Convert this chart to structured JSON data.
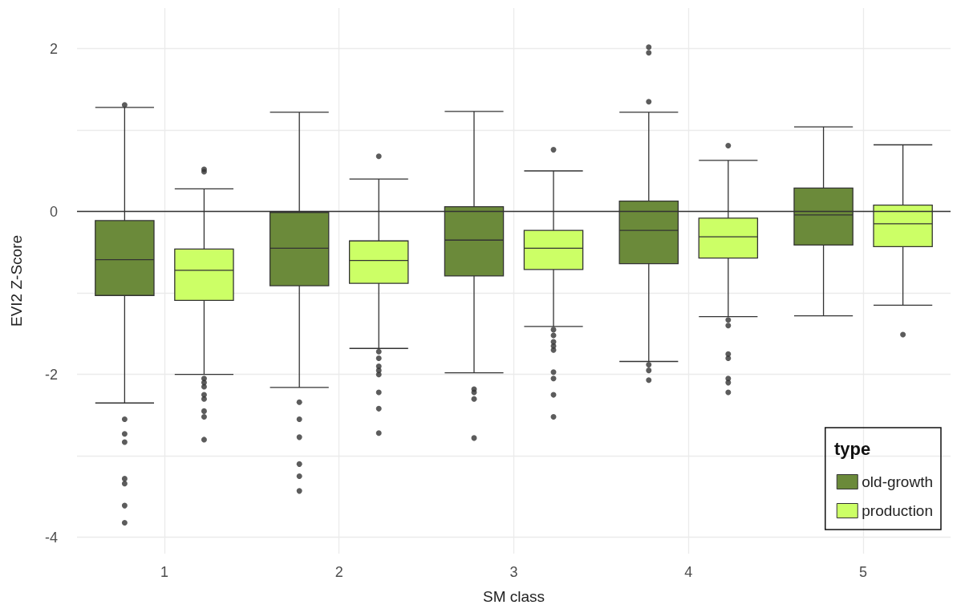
{
  "chart_data": {
    "type": "box",
    "xlabel": "SM class",
    "ylabel": "EVI2 Z-Score",
    "legend_title": "type",
    "categories": [
      "1",
      "2",
      "3",
      "4",
      "5"
    ],
    "ylim": [
      -4.2,
      2.5
    ],
    "yticks": [
      -4,
      {
        "value": -3,
        "label": null
      },
      -2,
      {
        "value": -1,
        "label": null
      },
      0,
      {
        "value": 1,
        "label": null
      },
      2
    ],
    "grid": true,
    "legend": "bottom right",
    "ref_lines": [
      {
        "axis": "y",
        "value": 0,
        "color": "#333333"
      }
    ],
    "series": [
      {
        "name": "old-growth",
        "color": "#6b8a3a",
        "boxes": [
          {
            "low": -2.35,
            "q1": -1.03,
            "median": -0.59,
            "q3": -0.11,
            "high": 1.28,
            "outliers": [
              1.31,
              -2.55,
              -2.73,
              -2.83,
              -3.28,
              -3.34,
              -3.61,
              -3.82
            ]
          },
          {
            "low": -2.16,
            "q1": -0.91,
            "median": -0.45,
            "q3": -0.01,
            "high": 1.22,
            "outliers": [
              -2.34,
              -2.55,
              -2.77,
              -3.1,
              -3.25,
              -3.43
            ]
          },
          {
            "low": -1.98,
            "q1": -0.79,
            "median": -0.35,
            "q3": 0.06,
            "high": 1.23,
            "outliers": [
              -2.18,
              -2.22,
              -2.3,
              -2.78
            ]
          },
          {
            "low": -1.84,
            "q1": -0.64,
            "median": -0.23,
            "q3": 0.13,
            "high": 1.22,
            "outliers": [
              2.02,
              1.95,
              1.35,
              -1.88,
              -1.95,
              -2.07
            ]
          },
          {
            "low": -1.28,
            "q1": -0.41,
            "median": -0.04,
            "q3": 0.29,
            "high": 1.04
          }
        ]
      },
      {
        "name": "production",
        "color": "#ccff66",
        "boxes": [
          {
            "low": -2.0,
            "q1": -1.09,
            "median": -0.72,
            "q3": -0.46,
            "high": 0.28,
            "outliers": [
              0.49,
              0.52,
              -2.05,
              -2.1,
              -2.15,
              -2.25,
              -2.3,
              -2.45,
              -2.52,
              -2.8
            ]
          },
          {
            "low": -1.68,
            "q1": -0.88,
            "median": -0.6,
            "q3": -0.36,
            "high": 0.4,
            "outliers": [
              0.68,
              -1.72,
              -1.8,
              -1.9,
              -1.95,
              -2.0,
              -2.22,
              -2.42,
              -2.72
            ]
          },
          {
            "low": -1.41,
            "q1": -0.71,
            "median": -0.45,
            "q3": -0.23,
            "high": 0.5,
            "outliers": [
              0.76,
              -1.45,
              -1.52,
              -1.6,
              -1.65,
              -1.7,
              -1.97,
              -2.05,
              -2.25,
              -2.52
            ]
          },
          {
            "low": -1.29,
            "q1": -0.57,
            "median": -0.31,
            "q3": -0.08,
            "high": 0.63,
            "outliers": [
              0.81,
              -1.33,
              -1.4,
              -1.75,
              -1.8,
              -2.05,
              -2.1,
              -2.22
            ]
          },
          {
            "low": -1.15,
            "q1": -0.43,
            "median": -0.15,
            "q3": 0.08,
            "high": 0.82,
            "outliers": [
              -1.51
            ]
          }
        ]
      }
    ]
  }
}
